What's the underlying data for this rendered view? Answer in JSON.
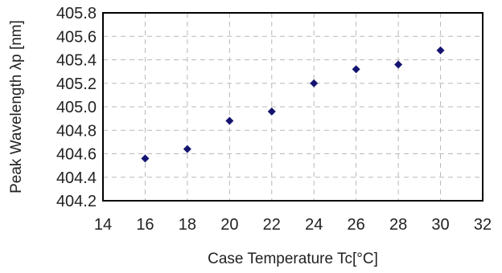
{
  "chart_data": {
    "type": "scatter",
    "xlabel": "Case Temperature Tc[°C]",
    "ylabel": "Peak Wavelength λp [nm]",
    "xlim": [
      14,
      32
    ],
    "ylim": [
      404.2,
      405.8
    ],
    "x_ticks": [
      "14",
      "16",
      "18",
      "20",
      "22",
      "24",
      "26",
      "28",
      "30",
      "32"
    ],
    "y_ticks": [
      "404.2",
      "404.4",
      "404.6",
      "404.8",
      "405.0",
      "405.2",
      "405.4",
      "405.6",
      "405.8"
    ],
    "grid": true,
    "marker_color": "#141470",
    "series": [
      {
        "x": [
          16,
          18,
          20,
          22,
          24,
          26,
          28,
          30
        ],
        "y": [
          404.56,
          404.64,
          404.88,
          404.96,
          405.2,
          405.32,
          405.36,
          405.48
        ]
      }
    ]
  }
}
